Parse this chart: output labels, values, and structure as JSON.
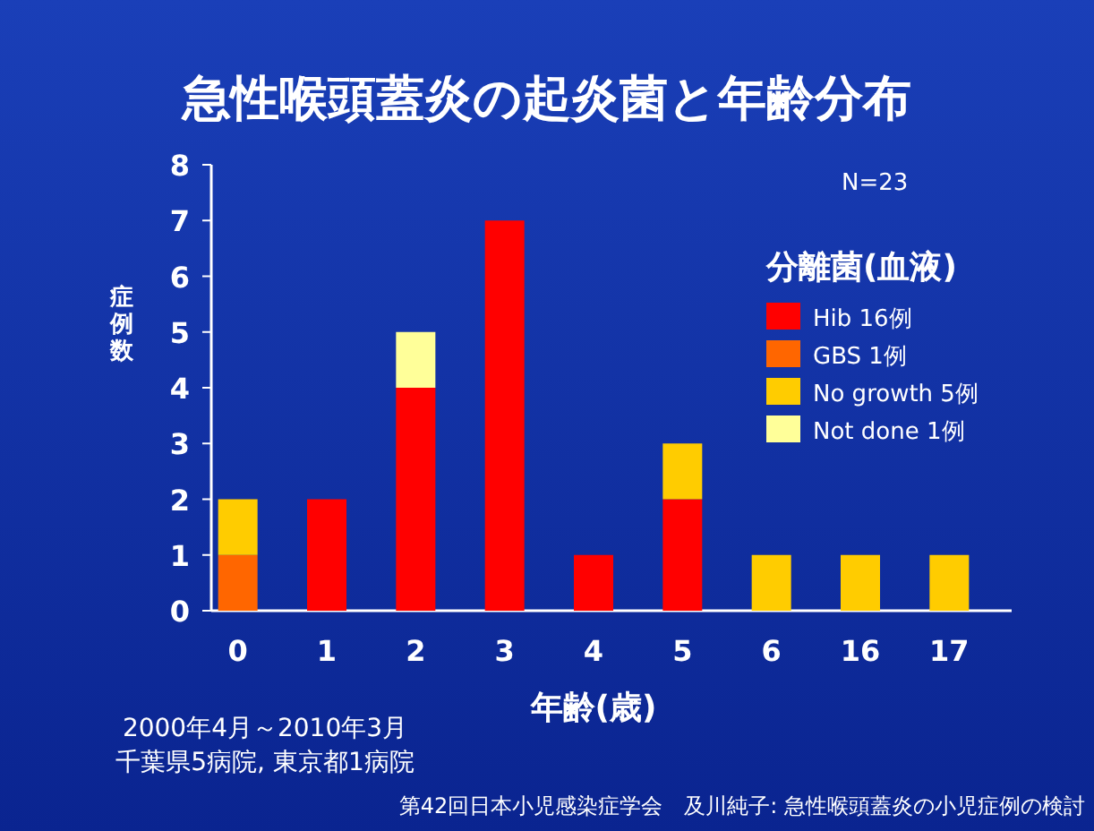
{
  "chart_data": {
    "type": "bar",
    "title": "急性喉頭蓋炎の起炎菌と年齢分布",
    "xlabel": "年齢(歳)",
    "ylabel": "症例数",
    "legend_title": "分離菌(血液)",
    "categories": [
      "0",
      "1",
      "2",
      "3",
      "4",
      "5",
      "6",
      "16",
      "17"
    ],
    "stacked": true,
    "ylim": [
      0,
      8
    ],
    "yticks": [
      0,
      1,
      2,
      3,
      4,
      5,
      6,
      7,
      8
    ],
    "legend": "right",
    "series": [
      {
        "name": "Hib 16例",
        "color": "#ff0000",
        "values": [
          0,
          2,
          4,
          7,
          1,
          2,
          0,
          0,
          0
        ]
      },
      {
        "name": "GBS 1例",
        "color": "#ff6600",
        "values": [
          1,
          0,
          0,
          0,
          0,
          0,
          0,
          0,
          0
        ]
      },
      {
        "name": "No growth 5例",
        "color": "#ffcc00",
        "values": [
          1,
          0,
          0,
          0,
          0,
          1,
          1,
          1,
          1
        ]
      },
      {
        "name": "Not done 1例",
        "color": "#ffff99",
        "values": [
          0,
          0,
          1,
          0,
          0,
          0,
          0,
          0,
          0
        ]
      }
    ],
    "annotations": [
      "N=23",
      "2000年4月～2010年3月",
      "千葉県5病院, 東京都1病院",
      "第42回日本小児感染症学会　及川純子: 急性喉頭蓋炎の小児症例の検討"
    ]
  }
}
